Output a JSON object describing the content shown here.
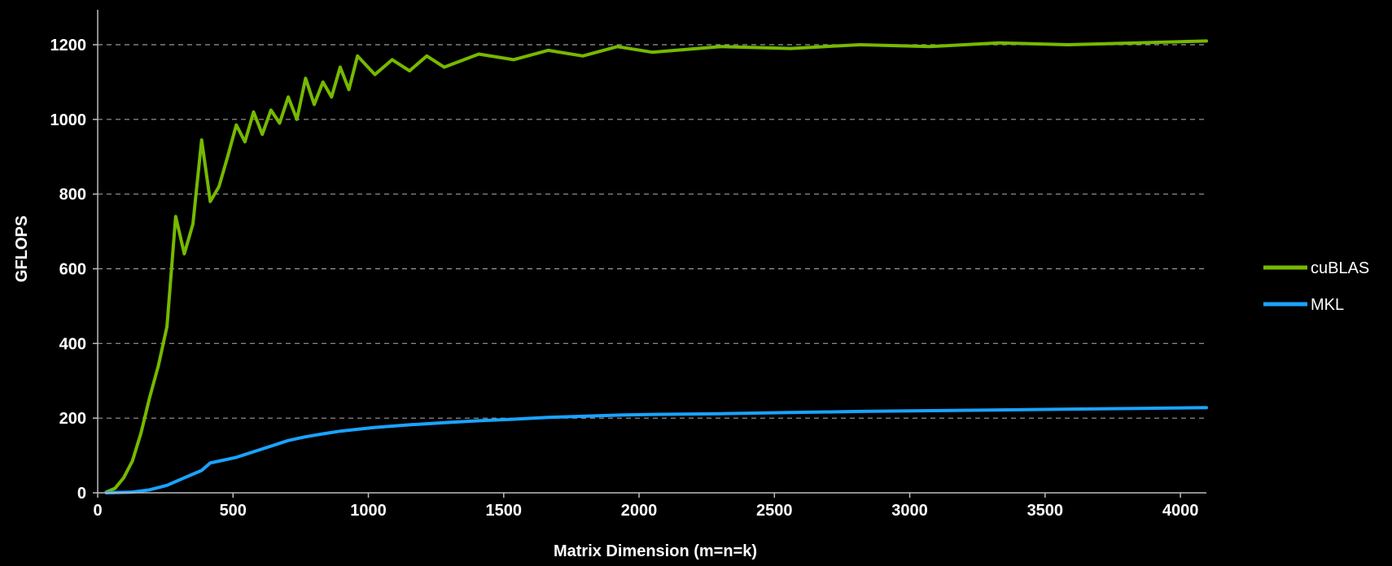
{
  "colors": {
    "background": "#000000",
    "cublas": "#76b900",
    "mkl": "#1aa3ff",
    "grid": "#9a9a9a",
    "axis": "#bdbdbd",
    "text": "#ffffff"
  },
  "chart_data": {
    "type": "line",
    "title": "",
    "xlabel": "Matrix Dimension (m=n=k)",
    "ylabel": "GFLOPS",
    "xlim": [
      0,
      4096
    ],
    "ylim": [
      0,
      1200
    ],
    "x_ticks": [
      0,
      500,
      1000,
      1500,
      2000,
      2500,
      3000,
      3500,
      4000
    ],
    "y_ticks": [
      0,
      200,
      400,
      600,
      800,
      1000,
      1200
    ],
    "grid": "horizontal dashed",
    "legend_position": "right",
    "series": [
      {
        "name": "cuBLAS",
        "color": "#76b900",
        "points": [
          [
            32,
            2
          ],
          [
            64,
            12
          ],
          [
            96,
            40
          ],
          [
            128,
            85
          ],
          [
            160,
            160
          ],
          [
            192,
            255
          ],
          [
            224,
            340
          ],
          [
            256,
            445
          ],
          [
            288,
            740
          ],
          [
            320,
            640
          ],
          [
            352,
            720
          ],
          [
            384,
            945
          ],
          [
            416,
            780
          ],
          [
            448,
            820
          ],
          [
            480,
            900
          ],
          [
            512,
            985
          ],
          [
            544,
            940
          ],
          [
            576,
            1020
          ],
          [
            608,
            960
          ],
          [
            640,
            1025
          ],
          [
            672,
            990
          ],
          [
            704,
            1060
          ],
          [
            736,
            1000
          ],
          [
            768,
            1110
          ],
          [
            800,
            1040
          ],
          [
            832,
            1100
          ],
          [
            864,
            1060
          ],
          [
            896,
            1140
          ],
          [
            928,
            1080
          ],
          [
            960,
            1170
          ],
          [
            1024,
            1120
          ],
          [
            1088,
            1160
          ],
          [
            1152,
            1130
          ],
          [
            1216,
            1170
          ],
          [
            1280,
            1140
          ],
          [
            1408,
            1175
          ],
          [
            1536,
            1160
          ],
          [
            1664,
            1185
          ],
          [
            1792,
            1170
          ],
          [
            1920,
            1195
          ],
          [
            2048,
            1180
          ],
          [
            2304,
            1195
          ],
          [
            2560,
            1190
          ],
          [
            2816,
            1200
          ],
          [
            3072,
            1195
          ],
          [
            3328,
            1205
          ],
          [
            3584,
            1200
          ],
          [
            3840,
            1205
          ],
          [
            4096,
            1210
          ]
        ]
      },
      {
        "name": "MKL",
        "color": "#1aa3ff",
        "points": [
          [
            32,
            0
          ],
          [
            128,
            2
          ],
          [
            192,
            8
          ],
          [
            256,
            20
          ],
          [
            320,
            40
          ],
          [
            384,
            60
          ],
          [
            416,
            80
          ],
          [
            448,
            85
          ],
          [
            512,
            95
          ],
          [
            576,
            110
          ],
          [
            640,
            125
          ],
          [
            704,
            140
          ],
          [
            768,
            150
          ],
          [
            832,
            158
          ],
          [
            896,
            165
          ],
          [
            960,
            170
          ],
          [
            1024,
            175
          ],
          [
            1152,
            182
          ],
          [
            1280,
            188
          ],
          [
            1408,
            193
          ],
          [
            1536,
            197
          ],
          [
            1664,
            202
          ],
          [
            1792,
            205
          ],
          [
            1920,
            208
          ],
          [
            2048,
            210
          ],
          [
            2304,
            212
          ],
          [
            2560,
            215
          ],
          [
            2816,
            218
          ],
          [
            3072,
            220
          ],
          [
            3328,
            222
          ],
          [
            3584,
            224
          ],
          [
            3840,
            226
          ],
          [
            4096,
            228
          ]
        ]
      }
    ]
  }
}
